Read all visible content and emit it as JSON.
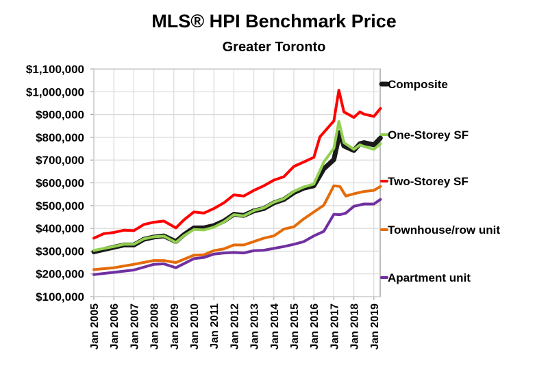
{
  "chart_data": {
    "type": "line",
    "title": "MLS® HPI Benchmark Price",
    "subtitle": "Greater Toronto",
    "xlabel": "",
    "ylabel": "",
    "ylim": [
      100000,
      1100000
    ],
    "xlim": [
      2005,
      2019.33
    ],
    "grid": true,
    "legend_position": "right",
    "y_ticks": [
      100000,
      200000,
      300000,
      400000,
      500000,
      600000,
      700000,
      800000,
      900000,
      1000000,
      1100000
    ],
    "y_tick_labels": [
      "$100,000",
      "$200,000",
      "$300,000",
      "$400,000",
      "$500,000",
      "$600,000",
      "$700,000",
      "$800,000",
      "$900,000",
      "$1,000,000",
      "$1,100,000"
    ],
    "x_ticks": [
      2005,
      2006,
      2007,
      2008,
      2009,
      2010,
      2011,
      2012,
      2013,
      2014,
      2015,
      2016,
      2017,
      2018,
      2019
    ],
    "x_tick_labels": [
      "Jan 2005",
      "Jan 2006",
      "Jan 2007",
      "Jan 2008",
      "Jan 2009",
      "Jan 2010",
      "Jan 2011",
      "Jan 2012",
      "Jan 2013",
      "Jan 2014",
      "Jan 2015",
      "Jan 2016",
      "Jan 2017",
      "Jan 2018",
      "Jan 2019"
    ],
    "series": [
      {
        "name": "Two-Storey SF",
        "color": "#ff0000",
        "width": 4,
        "x": [
          2005,
          2005.5,
          2006,
          2006.5,
          2007,
          2007.5,
          2008,
          2008.5,
          2009.1,
          2009.5,
          2010,
          2010.5,
          2011,
          2011.5,
          2012,
          2012.5,
          2013,
          2013.5,
          2014,
          2014.5,
          2015,
          2015.5,
          2016,
          2016.3,
          2016.8,
          2017,
          2017.25,
          2017.5,
          2018,
          2018.3,
          2018.5,
          2019,
          2019.33
        ],
        "y": [
          357000,
          377000,
          382000,
          392000,
          390000,
          417000,
          427000,
          432000,
          402000,
          437000,
          472000,
          467000,
          487000,
          512000,
          547000,
          542000,
          567000,
          587000,
          612000,
          627000,
          672000,
          692000,
          712000,
          802000,
          852000,
          872000,
          1007000,
          912000,
          887000,
          912000,
          902000,
          892000,
          927000
        ]
      },
      {
        "name": "Townhouse/row unit",
        "color": "#e46c0a",
        "width": 4,
        "x": [
          2005,
          2006,
          2007,
          2008,
          2008.5,
          2009.1,
          2010,
          2010.5,
          2011,
          2011.5,
          2012,
          2012.5,
          2013,
          2013.5,
          2014,
          2014.5,
          2015,
          2015.5,
          2016,
          2016.5,
          2017,
          2017.3,
          2017.6,
          2018,
          2018.5,
          2019,
          2019.33
        ],
        "y": [
          219000,
          227000,
          242000,
          259000,
          259000,
          250000,
          282000,
          284000,
          302000,
          310000,
          327000,
          327000,
          342000,
          357000,
          367000,
          397000,
          407000,
          442000,
          472000,
          502000,
          587000,
          584000,
          542000,
          552000,
          562000,
          567000,
          584000
        ]
      },
      {
        "name": "Apartment unit",
        "color": "#7030a0",
        "width": 4,
        "x": [
          2005,
          2006,
          2007,
          2008,
          2008.5,
          2009.1,
          2010,
          2010.5,
          2011,
          2011.5,
          2012,
          2012.5,
          2013,
          2013.5,
          2014,
          2014.5,
          2015,
          2015.5,
          2016,
          2016.5,
          2017,
          2017.3,
          2017.6,
          2018,
          2018.5,
          2019,
          2019.33
        ],
        "y": [
          197000,
          207000,
          217000,
          242000,
          244000,
          227000,
          267000,
          272000,
          287000,
          292000,
          294000,
          292000,
          302000,
          304000,
          312000,
          320000,
          330000,
          342000,
          367000,
          387000,
          462000,
          460000,
          467000,
          497000,
          507000,
          507000,
          527000
        ]
      },
      {
        "name": "Composite",
        "color": "#1a1a1a",
        "width": 7,
        "x": [
          2005,
          2006,
          2006.5,
          2007,
          2007.5,
          2008,
          2008.5,
          2009.1,
          2009.5,
          2010,
          2010.5,
          2011,
          2011.5,
          2012,
          2012.5,
          2013,
          2013.5,
          2014,
          2014.5,
          2015,
          2015.5,
          2016,
          2016.5,
          2017,
          2017.3,
          2017.5,
          2018,
          2018.3,
          2018.5,
          2019,
          2019.33
        ],
        "y": [
          297000,
          317000,
          327000,
          327000,
          352000,
          362000,
          367000,
          342000,
          372000,
          402000,
          402000,
          412000,
          432000,
          462000,
          457000,
          477000,
          487000,
          512000,
          527000,
          557000,
          577000,
          587000,
          662000,
          702000,
          822000,
          762000,
          742000,
          772000,
          777000,
          767000,
          797000
        ]
      },
      {
        "name": "One-Storey SF",
        "color": "#92d050",
        "width": 4,
        "x": [
          2005,
          2006,
          2006.5,
          2007,
          2007.5,
          2008,
          2008.5,
          2009.1,
          2009.5,
          2010,
          2010.5,
          2011,
          2011.5,
          2012,
          2012.5,
          2013,
          2013.5,
          2014,
          2014.5,
          2015,
          2015.5,
          2016,
          2016.5,
          2017,
          2017.25,
          2017.5,
          2018,
          2018.3,
          2018.5,
          2019,
          2019.33
        ],
        "y": [
          303000,
          320000,
          330000,
          330000,
          354000,
          363000,
          366000,
          338000,
          368000,
          395000,
          393000,
          405000,
          428000,
          460000,
          455000,
          478000,
          490000,
          515000,
          530000,
          562000,
          582000,
          595000,
          692000,
          752000,
          870000,
          777000,
          747000,
          767000,
          760000,
          747000,
          772000
        ]
      }
    ],
    "legend": [
      "Composite",
      "One-Storey SF",
      "Two-Storey SF",
      "Townhouse/row unit",
      "Apartment unit"
    ]
  }
}
